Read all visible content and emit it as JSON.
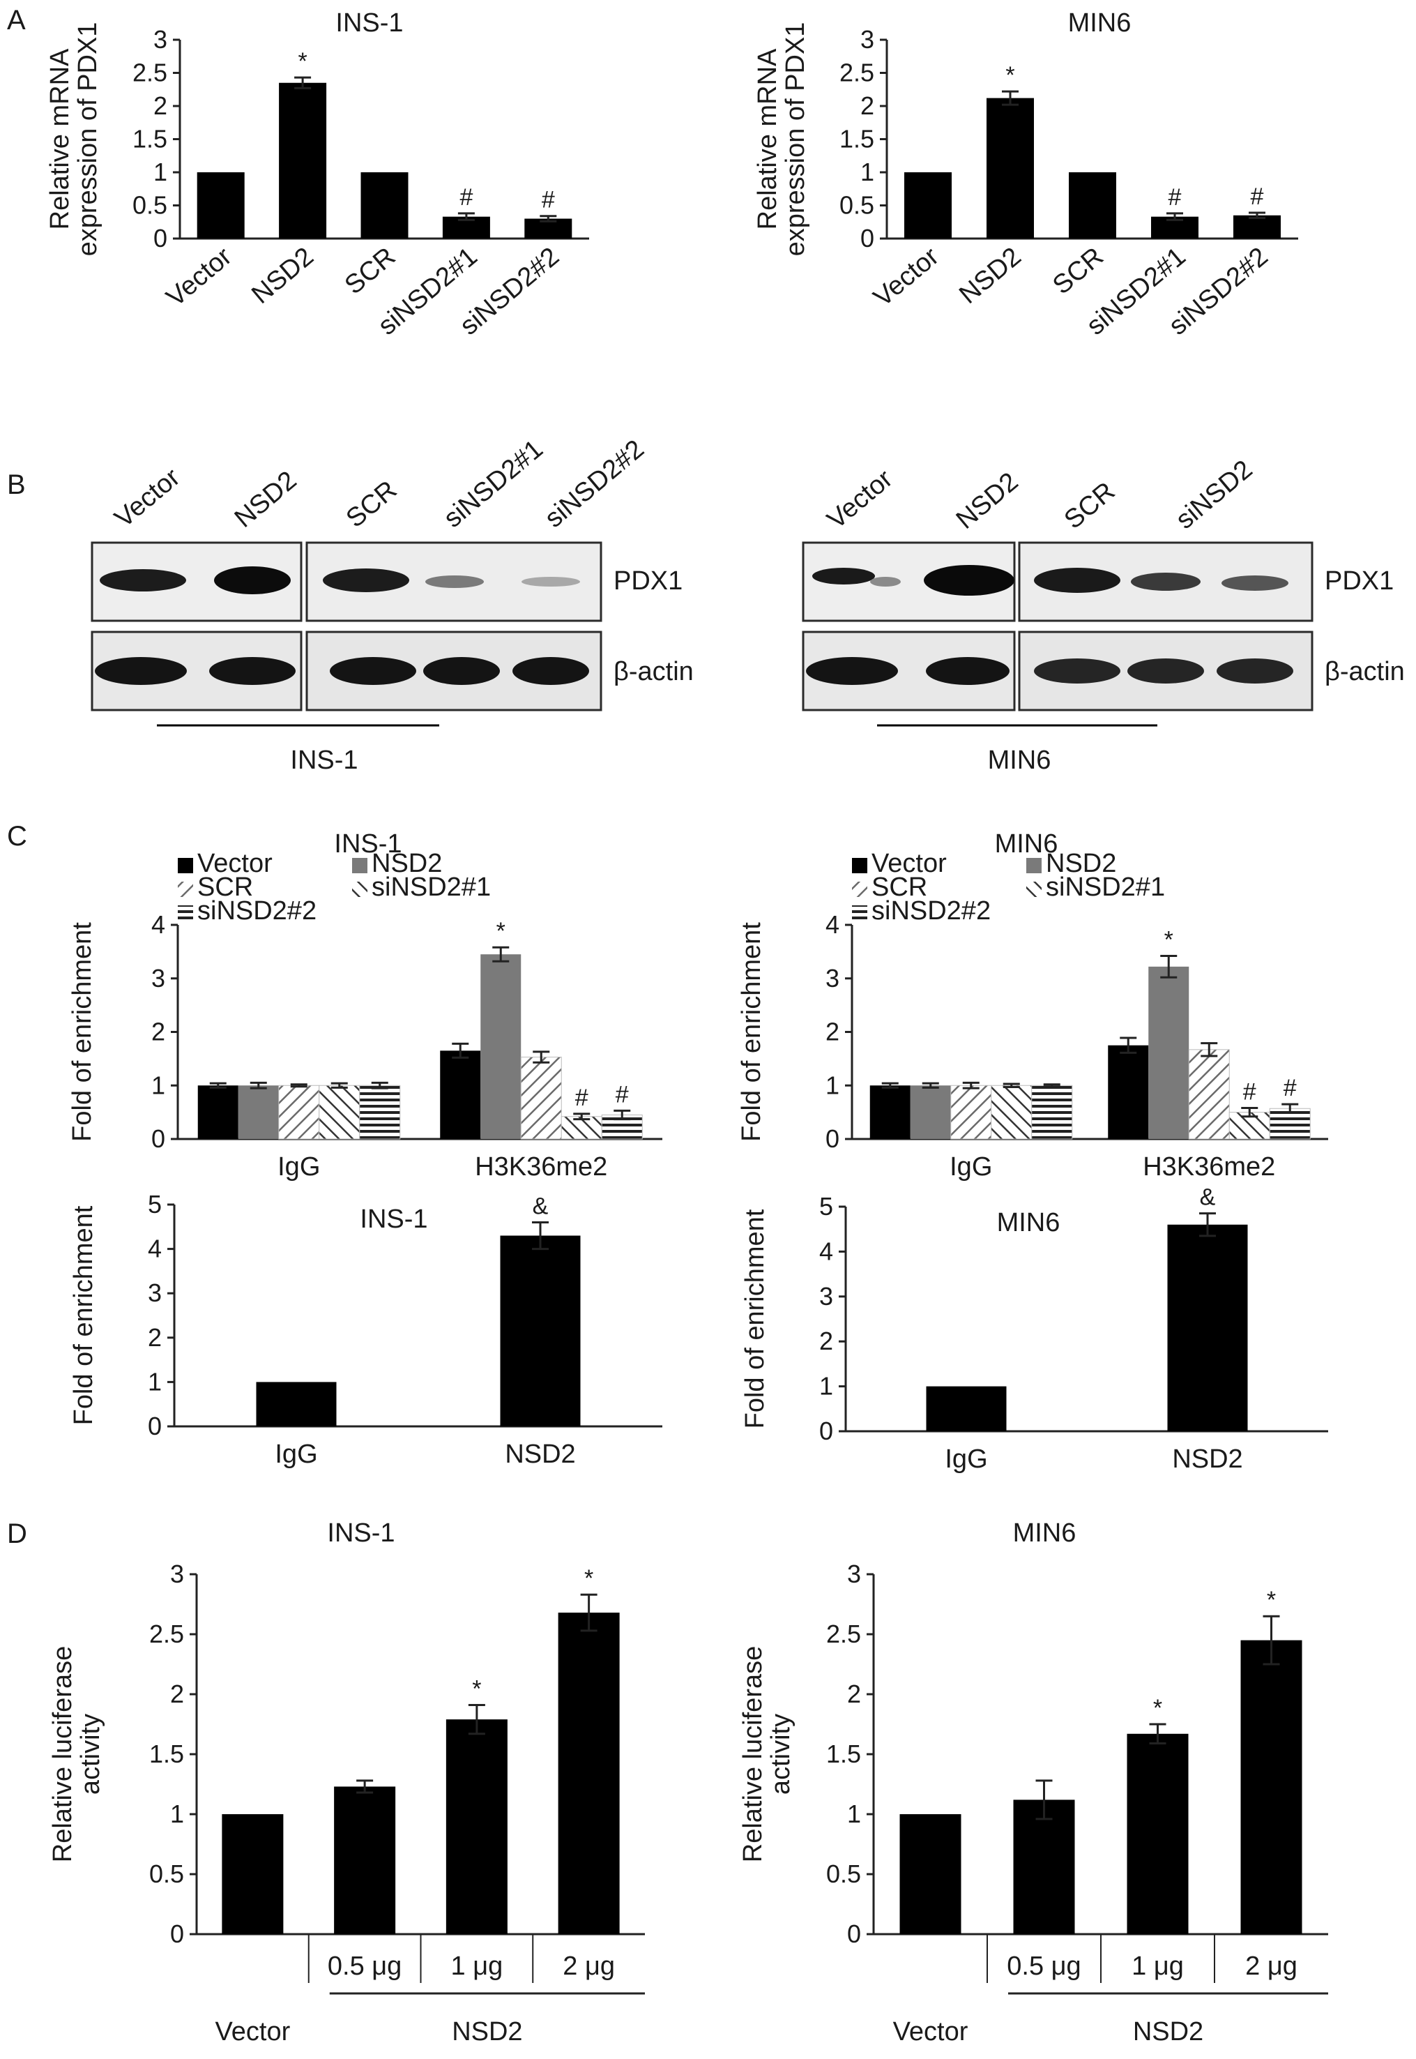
{
  "panels": {
    "a": "A",
    "b": "B",
    "c": "C",
    "d": "D"
  },
  "blots": {
    "ins1": {
      "lanes": [
        "Vector",
        "NSD2",
        "SCR",
        "siNSD2#1",
        "siNSD2#2"
      ],
      "rows": [
        "PDX1",
        "β-actin"
      ],
      "cell_line": "INS-1"
    },
    "min6": {
      "lanes": [
        "Vector",
        "NSD2",
        "SCR",
        "siNSD2"
      ],
      "rows": [
        "PDX1",
        "β-actin"
      ],
      "cell_line": "MIN6"
    }
  },
  "chart_data": [
    {
      "id": "A1",
      "type": "bar",
      "title": "INS-1",
      "ylabel": [
        "Relative mRNA",
        "expression of PDX1"
      ],
      "categories": [
        "Vector",
        "NSD2",
        "SCR",
        "siNSD2#1",
        "siNSD2#2"
      ],
      "values": [
        1.0,
        2.35,
        1.0,
        0.33,
        0.3
      ],
      "errors": [
        0.0,
        0.08,
        0.0,
        0.05,
        0.04
      ],
      "markers": [
        "",
        "*",
        "",
        "#",
        "#"
      ],
      "ylim": [
        0,
        3
      ],
      "yticks": [
        0,
        0.5,
        1,
        1.5,
        2,
        2.5,
        3
      ],
      "colors": [
        "#000000"
      ]
    },
    {
      "id": "A2",
      "type": "bar",
      "title": "MIN6",
      "ylabel": [
        "Relative mRNA",
        "expression of PDX1"
      ],
      "categories": [
        "Vector",
        "NSD2",
        "SCR",
        "siNSD2#1",
        "siNSD2#2"
      ],
      "values": [
        1.0,
        2.12,
        1.0,
        0.33,
        0.35
      ],
      "errors": [
        0.0,
        0.1,
        0.0,
        0.05,
        0.04
      ],
      "markers": [
        "",
        "*",
        "",
        "#",
        "#"
      ],
      "ylim": [
        0,
        3
      ],
      "yticks": [
        0,
        0.5,
        1,
        1.5,
        2,
        2.5,
        3
      ],
      "colors": [
        "#000000"
      ]
    },
    {
      "id": "C1",
      "type": "bar",
      "title": "INS-1",
      "ylabel": [
        "Fold of enrichment"
      ],
      "categories": [
        "IgG",
        "H3K36me2"
      ],
      "series": [
        {
          "name": "Vector",
          "values": [
            1.0,
            1.65
          ],
          "errors": [
            0.04,
            0.13
          ],
          "markers": [
            "",
            ""
          ],
          "fill": "#000000",
          "pattern": "solid"
        },
        {
          "name": "NSD2",
          "values": [
            1.0,
            3.45
          ],
          "errors": [
            0.05,
            0.13
          ],
          "markers": [
            "",
            "*"
          ],
          "fill": "#7a7a7a",
          "pattern": "solid"
        },
        {
          "name": "SCR",
          "values": [
            1.0,
            1.53
          ],
          "errors": [
            0.02,
            0.1
          ],
          "markers": [
            "",
            ""
          ],
          "fill": "#ffffff",
          "pattern": "back"
        },
        {
          "name": "siNSD2#1",
          "values": [
            1.0,
            0.42
          ],
          "errors": [
            0.04,
            0.05
          ],
          "markers": [
            "",
            "#"
          ],
          "fill": "#ffffff",
          "pattern": "fwd"
        },
        {
          "name": "siNSD2#2",
          "values": [
            1.0,
            0.45
          ],
          "errors": [
            0.05,
            0.08
          ],
          "markers": [
            "",
            "#"
          ],
          "fill": "#ffffff",
          "pattern": "horiz"
        }
      ],
      "ylim": [
        0,
        4
      ],
      "yticks": [
        0,
        1,
        2,
        3,
        4
      ],
      "legend": "top-left"
    },
    {
      "id": "C2",
      "type": "bar",
      "title": "MIN6",
      "ylabel": [
        "Fold of enrichment"
      ],
      "categories": [
        "IgG",
        "H3K36me2"
      ],
      "series": [
        {
          "name": "Vector",
          "values": [
            1.0,
            1.75
          ],
          "errors": [
            0.04,
            0.14
          ],
          "markers": [
            "",
            ""
          ],
          "fill": "#000000",
          "pattern": "solid"
        },
        {
          "name": "NSD2",
          "values": [
            1.0,
            3.22
          ],
          "errors": [
            0.04,
            0.2
          ],
          "markers": [
            "",
            "*"
          ],
          "fill": "#7a7a7a",
          "pattern": "solid"
        },
        {
          "name": "SCR",
          "values": [
            1.0,
            1.67
          ],
          "errors": [
            0.05,
            0.12
          ],
          "markers": [
            "",
            ""
          ],
          "fill": "#ffffff",
          "pattern": "back"
        },
        {
          "name": "siNSD2#1",
          "values": [
            1.0,
            0.5
          ],
          "errors": [
            0.03,
            0.08
          ],
          "markers": [
            "",
            "#"
          ],
          "fill": "#ffffff",
          "pattern": "fwd"
        },
        {
          "name": "siNSD2#2",
          "values": [
            1.0,
            0.57
          ],
          "errors": [
            0.02,
            0.08
          ],
          "markers": [
            "",
            "#"
          ],
          "fill": "#ffffff",
          "pattern": "horiz"
        }
      ],
      "ylim": [
        0,
        4
      ],
      "yticks": [
        0,
        1,
        2,
        3,
        4
      ],
      "legend": "top-left"
    },
    {
      "id": "C3",
      "type": "bar",
      "title": "INS-1",
      "ylabel": [
        "Fold of enrichment"
      ],
      "categories": [
        "IgG",
        "NSD2"
      ],
      "values": [
        1.0,
        4.3
      ],
      "errors": [
        0.0,
        0.3
      ],
      "markers": [
        "",
        "&"
      ],
      "ylim": [
        0,
        5
      ],
      "yticks": [
        0,
        1,
        2,
        3,
        4,
        5
      ],
      "colors": [
        "#000000"
      ]
    },
    {
      "id": "C4",
      "type": "bar",
      "title": "MIN6",
      "ylabel": [
        "Fold of enrichment"
      ],
      "categories": [
        "IgG",
        "NSD2"
      ],
      "values": [
        1.0,
        4.6
      ],
      "errors": [
        0.0,
        0.25
      ],
      "markers": [
        "",
        "&"
      ],
      "ylim": [
        0,
        5
      ],
      "yticks": [
        0,
        1,
        2,
        3,
        4,
        5
      ],
      "colors": [
        "#000000"
      ]
    },
    {
      "id": "D1",
      "type": "bar",
      "title": "INS-1",
      "ylabel": [
        "Relative luciferase",
        "activity"
      ],
      "categories": [
        "Vector",
        "0.5 μg",
        "1 μg",
        "2 μg"
      ],
      "group_label": "NSD2",
      "values": [
        1.0,
        1.23,
        1.79,
        2.68
      ],
      "errors": [
        0.0,
        0.05,
        0.12,
        0.15
      ],
      "markers": [
        "",
        "",
        "*",
        "*"
      ],
      "ylim": [
        0,
        3
      ],
      "yticks": [
        0,
        0.5,
        1,
        1.5,
        2,
        2.5,
        3
      ],
      "colors": [
        "#000000"
      ]
    },
    {
      "id": "D2",
      "type": "bar",
      "title": "MIN6",
      "ylabel": [
        "Relative luciferase",
        "activity"
      ],
      "categories": [
        "Vector",
        "0.5 μg",
        "1 μg",
        "2 μg"
      ],
      "group_label": "NSD2",
      "values": [
        1.0,
        1.12,
        1.67,
        2.45
      ],
      "errors": [
        0.0,
        0.16,
        0.08,
        0.2
      ],
      "markers": [
        "",
        "",
        "*",
        "*"
      ],
      "ylim": [
        0,
        3
      ],
      "yticks": [
        0,
        0.5,
        1,
        1.5,
        2,
        2.5,
        3
      ],
      "colors": [
        "#000000"
      ]
    }
  ]
}
